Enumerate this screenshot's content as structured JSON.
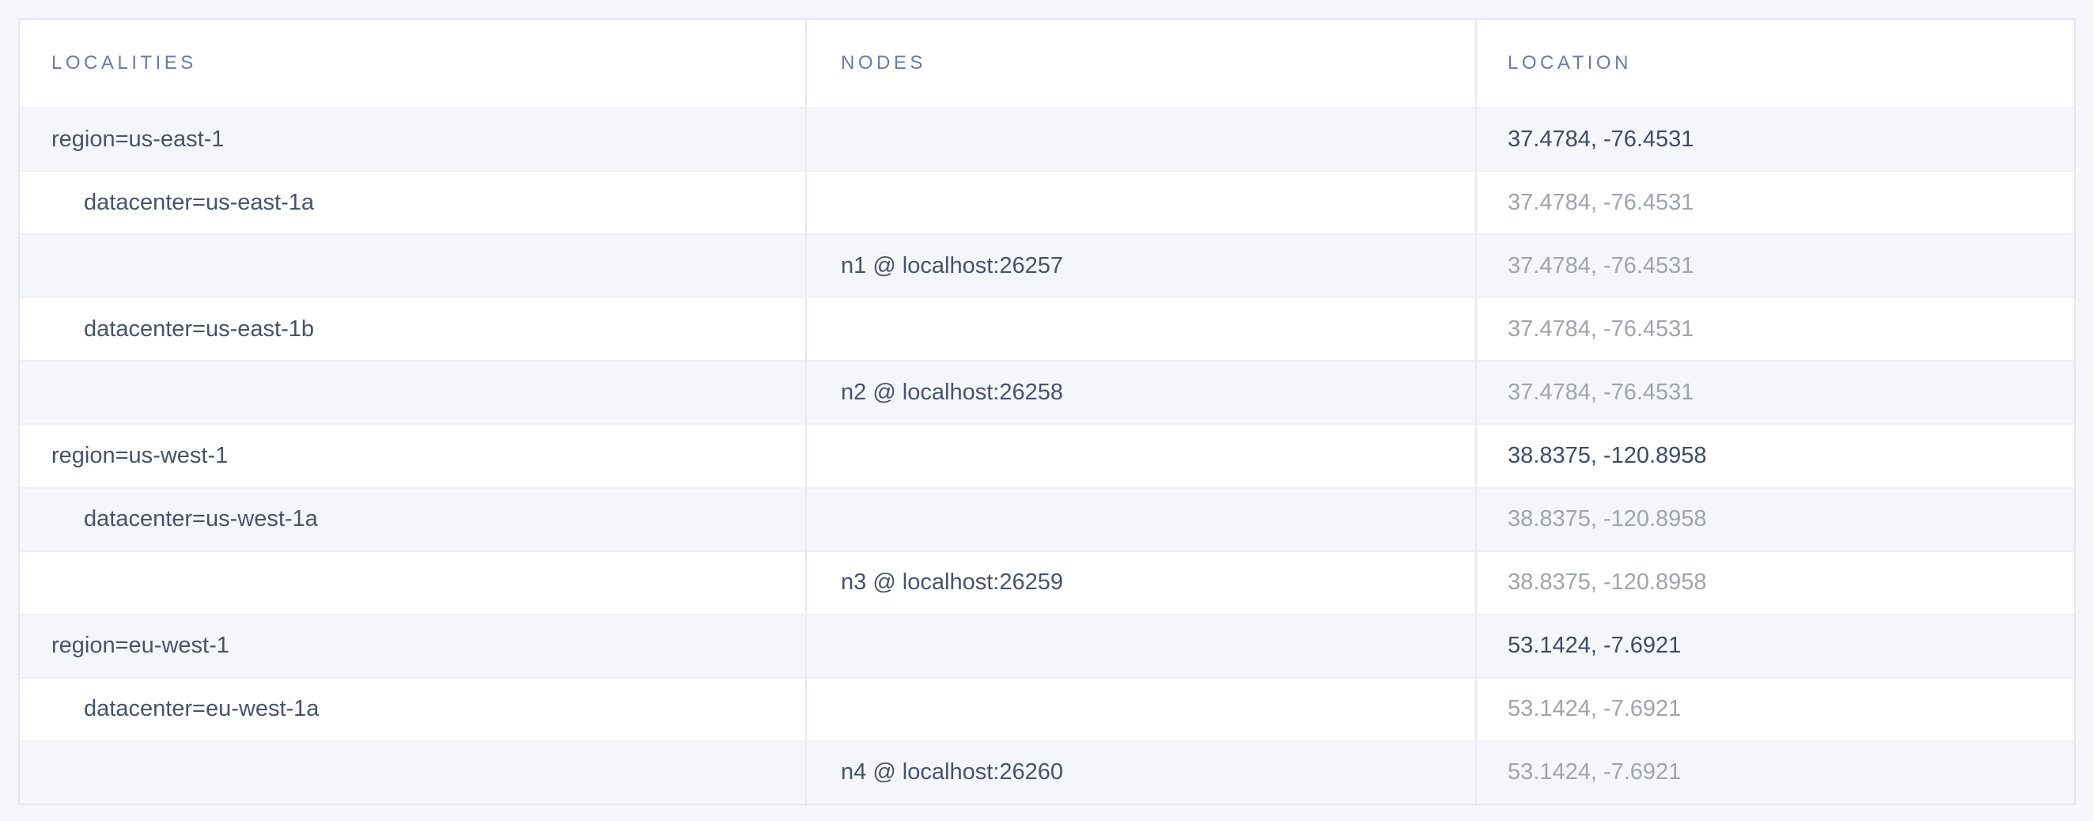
{
  "colors": {
    "page_background": "#f4f6f9",
    "row_stripe": "#f5f6fa",
    "table_border": "#e3e8ef",
    "header_text": "#6e7b9e",
    "primary_text": "#47536b",
    "location_emphasis_text": "#3f4b66",
    "location_muted_text": "#9fa4ad"
  },
  "table": {
    "columns": [
      {
        "key": "localities",
        "label": "LOCALITIES"
      },
      {
        "key": "nodes",
        "label": "NODES"
      },
      {
        "key": "location",
        "label": "LOCATION"
      }
    ],
    "rows": [
      {
        "type": "region",
        "locality": "region=us-east-1",
        "node": "",
        "location": "37.4784, -76.4531",
        "location_muted": false
      },
      {
        "type": "datacenter",
        "locality": "datacenter=us-east-1a",
        "node": "",
        "location": "37.4784, -76.4531",
        "location_muted": true
      },
      {
        "type": "node",
        "locality": "",
        "node": "n1 @ localhost:26257",
        "location": "37.4784, -76.4531",
        "location_muted": true
      },
      {
        "type": "datacenter",
        "locality": "datacenter=us-east-1b",
        "node": "",
        "location": "37.4784, -76.4531",
        "location_muted": true
      },
      {
        "type": "node",
        "locality": "",
        "node": "n2 @ localhost:26258",
        "location": "37.4784, -76.4531",
        "location_muted": true
      },
      {
        "type": "region",
        "locality": "region=us-west-1",
        "node": "",
        "location": "38.8375, -120.8958",
        "location_muted": false
      },
      {
        "type": "datacenter",
        "locality": "datacenter=us-west-1a",
        "node": "",
        "location": "38.8375, -120.8958",
        "location_muted": true
      },
      {
        "type": "node",
        "locality": "",
        "node": "n3 @ localhost:26259",
        "location": "38.8375, -120.8958",
        "location_muted": true
      },
      {
        "type": "region",
        "locality": "region=eu-west-1",
        "node": "",
        "location": "53.1424, -7.6921",
        "location_muted": false
      },
      {
        "type": "datacenter",
        "locality": "datacenter=eu-west-1a",
        "node": "",
        "location": "53.1424, -7.6921",
        "location_muted": true
      },
      {
        "type": "node",
        "locality": "",
        "node": "n4 @ localhost:26260",
        "location": "53.1424, -7.6921",
        "location_muted": true
      }
    ]
  }
}
